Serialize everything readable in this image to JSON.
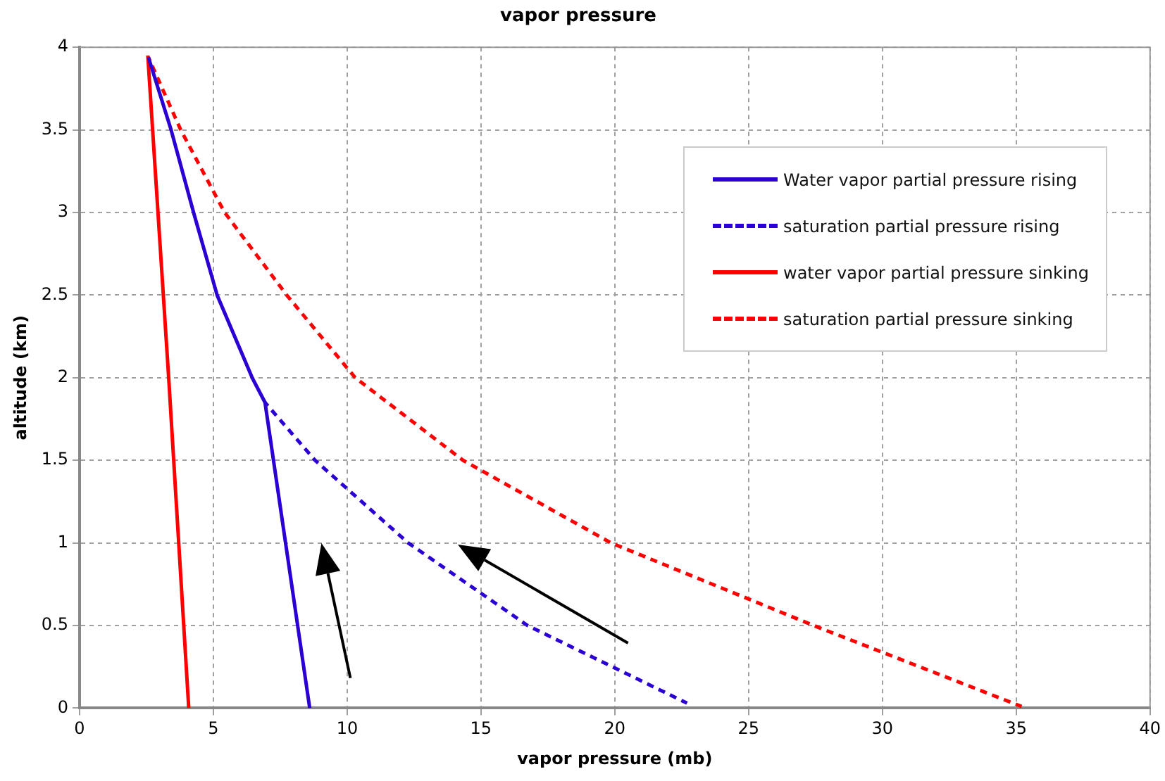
{
  "chart_data": {
    "type": "line",
    "title": "vapor pressure",
    "xlabel": "vapor pressure (mb)",
    "ylabel": "altitude (km)",
    "xlim": [
      0,
      40
    ],
    "xticks": [
      0,
      5,
      10,
      15,
      20,
      25,
      30,
      35,
      40
    ],
    "ylim": [
      0,
      4
    ],
    "yticks": [
      0,
      0.5,
      1,
      1.5,
      2,
      2.5,
      3,
      3.5,
      4
    ],
    "grid": true,
    "legend": "top right",
    "marker": "none",
    "series": [
      {
        "name": "Water vapor partial pressure rising",
        "color": "#2b00d4",
        "line_style": "solid",
        "x": [
          8.6,
          6.93,
          6.45,
          5.14,
          4.26,
          3.42,
          2.57
        ],
        "values": [
          0,
          1.85,
          2.0,
          2.5,
          3.0,
          3.5,
          3.94
        ]
      },
      {
        "name": "saturation partial pressure rising",
        "color": "#2b00d4",
        "line_style": "dashed",
        "x": [
          6.93,
          8.8,
          12.28,
          16.74,
          22.7
        ],
        "values": [
          1.85,
          1.5,
          1.0,
          0.5,
          0.03
        ]
      },
      {
        "name": "water vapor partial pressure sinking",
        "color": "#ff0000",
        "line_style": "solid",
        "x": [
          4.08,
          3.33,
          2.55
        ],
        "values": [
          0,
          2.0,
          3.95
        ]
      },
      {
        "name": "saturation partial pressure sinking",
        "color": "#ff0000",
        "line_style": "dashed",
        "x": [
          2.57,
          3.78,
          5.42,
          7.74,
          10.3,
          14.33,
          19.86,
          27.43,
          35.2
        ],
        "values": [
          3.94,
          3.5,
          3.0,
          2.5,
          2.0,
          1.5,
          1.0,
          0.5,
          0.01
        ]
      }
    ]
  }
}
